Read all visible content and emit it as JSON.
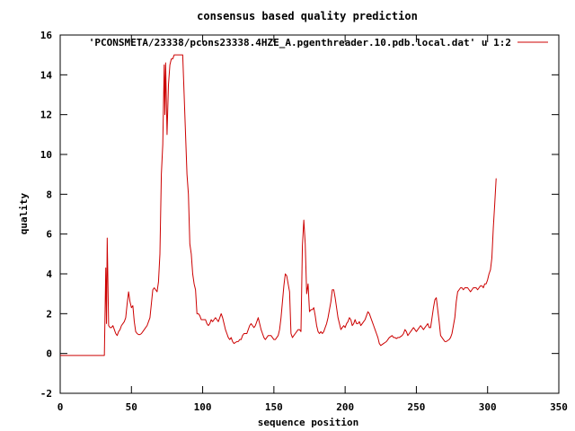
{
  "chart_data": {
    "type": "line",
    "title": "consensus based quality prediction",
    "xlabel": "sequence position",
    "ylabel": "quality",
    "xlim": [
      0,
      350
    ],
    "ylim": [
      -2,
      16
    ],
    "xticks": [
      0,
      50,
      100,
      150,
      200,
      250,
      300,
      350
    ],
    "yticks": [
      -2,
      0,
      2,
      4,
      6,
      8,
      10,
      12,
      14,
      16
    ],
    "grid": false,
    "legend_position": "top-right",
    "series": [
      {
        "name": "'PCONSMETA/23338/pcons23338.4HZE_A.pgenthreader.10.pdb.local.dat' u 1:2",
        "color": "#cc0000",
        "points": [
          [
            0,
            -0.1
          ],
          [
            5,
            -0.1
          ],
          [
            10,
            -0.1
          ],
          [
            15,
            -0.1
          ],
          [
            20,
            -0.1
          ],
          [
            25,
            -0.1
          ],
          [
            31,
            -0.1
          ],
          [
            32,
            4.3
          ],
          [
            32.5,
            1.5
          ],
          [
            33,
            5.8
          ],
          [
            34,
            1.4
          ],
          [
            35,
            1.3
          ],
          [
            36,
            1.3
          ],
          [
            37,
            1.4
          ],
          [
            38,
            1.2
          ],
          [
            39,
            1.0
          ],
          [
            40,
            0.9
          ],
          [
            41,
            1.1
          ],
          [
            42,
            1.2
          ],
          [
            43,
            1.4
          ],
          [
            44,
            1.5
          ],
          [
            45,
            1.6
          ],
          [
            46,
            1.8
          ],
          [
            47,
            2.5
          ],
          [
            48,
            3.1
          ],
          [
            49,
            2.6
          ],
          [
            50,
            2.3
          ],
          [
            51,
            2.4
          ],
          [
            52,
            1.6
          ],
          [
            53,
            1.1
          ],
          [
            54,
            1.0
          ],
          [
            55,
            0.95
          ],
          [
            56,
            0.95
          ],
          [
            57,
            1.0
          ],
          [
            58,
            1.1
          ],
          [
            59,
            1.2
          ],
          [
            60,
            1.3
          ],
          [
            61,
            1.4
          ],
          [
            62,
            1.6
          ],
          [
            63,
            1.8
          ],
          [
            64,
            2.5
          ],
          [
            65,
            3.2
          ],
          [
            66,
            3.3
          ],
          [
            67,
            3.2
          ],
          [
            68,
            3.1
          ],
          [
            69,
            3.6
          ],
          [
            70,
            5.0
          ],
          [
            71,
            9.0
          ],
          [
            72,
            10.5
          ],
          [
            73,
            14.5
          ],
          [
            73.5,
            12.0
          ],
          [
            74,
            14.6
          ],
          [
            75,
            11.0
          ],
          [
            76,
            13.5
          ],
          [
            77,
            14.5
          ],
          [
            78,
            14.8
          ],
          [
            79,
            14.8
          ],
          [
            80,
            15.0
          ],
          [
            81,
            15.0
          ],
          [
            82,
            15.0
          ],
          [
            83,
            15.0
          ],
          [
            84,
            15.0
          ],
          [
            85,
            15.0
          ],
          [
            86,
            15.0
          ],
          [
            87,
            13.0
          ],
          [
            88,
            11.0
          ],
          [
            89,
            9.0
          ],
          [
            90,
            8.0
          ],
          [
            91,
            5.5
          ],
          [
            92,
            5.0
          ],
          [
            93,
            4.0
          ],
          [
            94,
            3.5
          ],
          [
            95,
            3.2
          ],
          [
            96,
            2.0
          ],
          [
            97,
            2.0
          ],
          [
            98,
            1.9
          ],
          [
            99,
            1.7
          ],
          [
            100,
            1.7
          ],
          [
            101,
            1.7
          ],
          [
            102,
            1.7
          ],
          [
            103,
            1.5
          ],
          [
            104,
            1.4
          ],
          [
            105,
            1.5
          ],
          [
            106,
            1.7
          ],
          [
            107,
            1.6
          ],
          [
            108,
            1.7
          ],
          [
            109,
            1.8
          ],
          [
            110,
            1.7
          ],
          [
            111,
            1.6
          ],
          [
            112,
            1.8
          ],
          [
            113,
            2.0
          ],
          [
            114,
            1.8
          ],
          [
            115,
            1.5
          ],
          [
            116,
            1.2
          ],
          [
            117,
            1.0
          ],
          [
            118,
            0.8
          ],
          [
            119,
            0.7
          ],
          [
            120,
            0.8
          ],
          [
            121,
            0.6
          ],
          [
            122,
            0.5
          ],
          [
            123,
            0.55
          ],
          [
            124,
            0.6
          ],
          [
            125,
            0.6
          ],
          [
            126,
            0.7
          ],
          [
            127,
            0.7
          ],
          [
            128,
            0.9
          ],
          [
            129,
            1.0
          ],
          [
            130,
            1.0
          ],
          [
            131,
            1.0
          ],
          [
            132,
            1.2
          ],
          [
            133,
            1.4
          ],
          [
            134,
            1.5
          ],
          [
            135,
            1.4
          ],
          [
            136,
            1.3
          ],
          [
            137,
            1.4
          ],
          [
            138,
            1.6
          ],
          [
            139,
            1.8
          ],
          [
            140,
            1.5
          ],
          [
            141,
            1.2
          ],
          [
            142,
            1.0
          ],
          [
            143,
            0.8
          ],
          [
            144,
            0.7
          ],
          [
            145,
            0.8
          ],
          [
            146,
            0.9
          ],
          [
            147,
            0.9
          ],
          [
            148,
            0.9
          ],
          [
            149,
            0.8
          ],
          [
            150,
            0.7
          ],
          [
            151,
            0.7
          ],
          [
            152,
            0.8
          ],
          [
            153,
            0.9
          ],
          [
            154,
            1.2
          ],
          [
            155,
            1.8
          ],
          [
            156,
            2.6
          ],
          [
            157,
            3.4
          ],
          [
            158,
            4.0
          ],
          [
            159,
            3.9
          ],
          [
            160,
            3.5
          ],
          [
            161,
            3.1
          ],
          [
            162,
            1.0
          ],
          [
            163,
            0.8
          ],
          [
            164,
            0.9
          ],
          [
            165,
            1.0
          ],
          [
            166,
            1.1
          ],
          [
            167,
            1.2
          ],
          [
            168,
            1.2
          ],
          [
            169,
            1.1
          ],
          [
            170,
            5.4
          ],
          [
            171,
            6.7
          ],
          [
            172,
            5.5
          ],
          [
            173,
            3.0
          ],
          [
            174,
            3.5
          ],
          [
            175,
            2.1
          ],
          [
            176,
            2.2
          ],
          [
            177,
            2.2
          ],
          [
            178,
            2.3
          ],
          [
            179,
            1.9
          ],
          [
            180,
            1.4
          ],
          [
            181,
            1.1
          ],
          [
            182,
            1.0
          ],
          [
            183,
            1.1
          ],
          [
            184,
            1.0
          ],
          [
            185,
            1.1
          ],
          [
            186,
            1.3
          ],
          [
            187,
            1.5
          ],
          [
            188,
            1.8
          ],
          [
            189,
            2.2
          ],
          [
            190,
            2.6
          ],
          [
            191,
            3.2
          ],
          [
            192,
            3.2
          ],
          [
            193,
            2.8
          ],
          [
            194,
            2.3
          ],
          [
            195,
            1.8
          ],
          [
            196,
            1.5
          ],
          [
            197,
            1.2
          ],
          [
            198,
            1.3
          ],
          [
            199,
            1.4
          ],
          [
            200,
            1.3
          ],
          [
            201,
            1.5
          ],
          [
            202,
            1.6
          ],
          [
            203,
            1.8
          ],
          [
            204,
            1.7
          ],
          [
            205,
            1.4
          ],
          [
            206,
            1.5
          ],
          [
            207,
            1.7
          ],
          [
            208,
            1.5
          ],
          [
            209,
            1.5
          ],
          [
            210,
            1.6
          ],
          [
            211,
            1.4
          ],
          [
            212,
            1.5
          ],
          [
            213,
            1.6
          ],
          [
            214,
            1.7
          ],
          [
            215,
            1.9
          ],
          [
            216,
            2.1
          ],
          [
            217,
            2.0
          ],
          [
            218,
            1.8
          ],
          [
            219,
            1.6
          ],
          [
            220,
            1.4
          ],
          [
            221,
            1.2
          ],
          [
            222,
            1.0
          ],
          [
            223,
            0.8
          ],
          [
            224,
            0.5
          ],
          [
            225,
            0.4
          ],
          [
            226,
            0.45
          ],
          [
            227,
            0.5
          ],
          [
            228,
            0.55
          ],
          [
            229,
            0.6
          ],
          [
            230,
            0.7
          ],
          [
            231,
            0.8
          ],
          [
            232,
            0.85
          ],
          [
            233,
            0.9
          ],
          [
            234,
            0.8
          ],
          [
            235,
            0.8
          ],
          [
            236,
            0.75
          ],
          [
            237,
            0.8
          ],
          [
            238,
            0.8
          ],
          [
            239,
            0.85
          ],
          [
            240,
            0.9
          ],
          [
            241,
            1.0
          ],
          [
            242,
            1.2
          ],
          [
            243,
            1.1
          ],
          [
            244,
            0.9
          ],
          [
            245,
            1.0
          ],
          [
            246,
            1.1
          ],
          [
            247,
            1.2
          ],
          [
            248,
            1.3
          ],
          [
            249,
            1.2
          ],
          [
            250,
            1.1
          ],
          [
            251,
            1.2
          ],
          [
            252,
            1.3
          ],
          [
            253,
            1.4
          ],
          [
            254,
            1.3
          ],
          [
            255,
            1.2
          ],
          [
            256,
            1.3
          ],
          [
            257,
            1.4
          ],
          [
            258,
            1.5
          ],
          [
            259,
            1.3
          ],
          [
            260,
            1.3
          ],
          [
            261,
            1.8
          ],
          [
            262,
            2.3
          ],
          [
            263,
            2.7
          ],
          [
            264,
            2.8
          ],
          [
            265,
            2.2
          ],
          [
            266,
            1.6
          ],
          [
            267,
            0.9
          ],
          [
            268,
            0.8
          ],
          [
            269,
            0.7
          ],
          [
            270,
            0.6
          ],
          [
            271,
            0.6
          ],
          [
            272,
            0.65
          ],
          [
            273,
            0.7
          ],
          [
            274,
            0.8
          ],
          [
            275,
            1.0
          ],
          [
            276,
            1.4
          ],
          [
            277,
            1.8
          ],
          [
            278,
            2.6
          ],
          [
            279,
            3.1
          ],
          [
            280,
            3.2
          ],
          [
            281,
            3.3
          ],
          [
            282,
            3.3
          ],
          [
            283,
            3.2
          ],
          [
            284,
            3.3
          ],
          [
            285,
            3.3
          ],
          [
            286,
            3.3
          ],
          [
            287,
            3.2
          ],
          [
            288,
            3.1
          ],
          [
            289,
            3.2
          ],
          [
            290,
            3.3
          ],
          [
            291,
            3.3
          ],
          [
            292,
            3.3
          ],
          [
            293,
            3.2
          ],
          [
            294,
            3.3
          ],
          [
            295,
            3.4
          ],
          [
            296,
            3.4
          ],
          [
            297,
            3.3
          ],
          [
            298,
            3.5
          ],
          [
            299,
            3.5
          ],
          [
            300,
            3.7
          ],
          [
            301,
            4.0
          ],
          [
            302,
            4.2
          ],
          [
            303,
            4.8
          ],
          [
            304,
            6.3
          ],
          [
            305,
            7.5
          ],
          [
            306,
            8.8
          ]
        ]
      }
    ]
  }
}
